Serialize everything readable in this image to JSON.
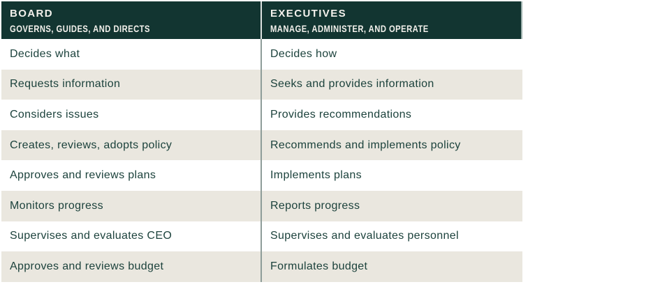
{
  "table": {
    "columns": [
      {
        "title": "BOARD",
        "subtitle": "GOVERNS, GUIDES, AND DIRECTS"
      },
      {
        "title": "EXECUTIVES",
        "subtitle": "MANAGE, ADMINISTER, AND OPERATE"
      }
    ],
    "rows": [
      {
        "board": "Decides what",
        "executives": "Decides how"
      },
      {
        "board": "Requests information",
        "executives": "Seeks and provides information"
      },
      {
        "board": "Considers issues",
        "executives": "Provides recommendations"
      },
      {
        "board": "Creates, reviews, adopts policy",
        "executives": "Recommends and implements policy"
      },
      {
        "board": "Approves and reviews plans",
        "executives": "Implements plans"
      },
      {
        "board": "Monitors progress",
        "executives": "Reports progress"
      },
      {
        "board": "Supervises and evaluates CEO",
        "executives": "Supervises and evaluates personnel"
      },
      {
        "board": "Approves and reviews budget",
        "executives": "Formulates budget"
      }
    ],
    "colors": {
      "header_bg": "#123531",
      "header_text": "#F3F1EC",
      "row_text": "#1C423C",
      "stripe": "#EAE7DF",
      "divider": "#8E9D99",
      "divider_header": "#DCE2E0",
      "page_bg": "#FFFFFF"
    }
  }
}
